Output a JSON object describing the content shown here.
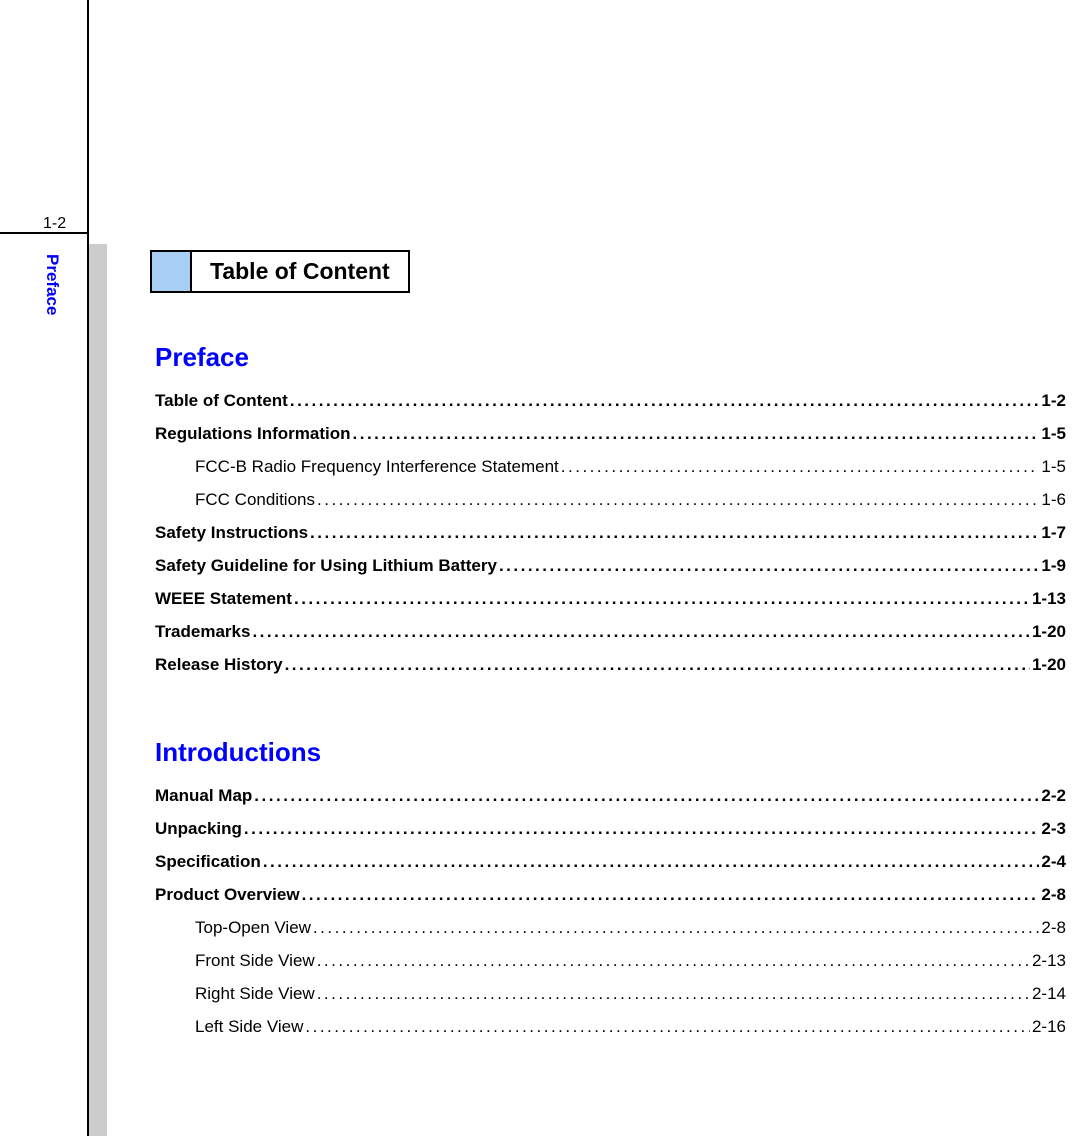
{
  "page_number": "1-2",
  "sidebar_tab": "Preface",
  "heading_box": "Table of Content",
  "colors": {
    "tab_text": "#0000ff",
    "section_title": "#0000ff",
    "box_fill": "#a9cef4",
    "gray_strip": "#cccccc",
    "text": "#000000",
    "background": "#ffffff"
  },
  "fonts": {
    "family": "Arial",
    "body_size_pt": 13,
    "section_title_size_pt": 20,
    "heading_box_size_pt": 17
  },
  "sections": [
    {
      "title": "Preface",
      "entries": [
        {
          "label": "Table of Content",
          "page": "1-2",
          "level": 0
        },
        {
          "label": "Regulations Information",
          "page": "1-5",
          "level": 0
        },
        {
          "label": "FCC-B Radio Frequency Interference Statement",
          "page": "1-5",
          "level": 1
        },
        {
          "label": "FCC Conditions",
          "page": "1-6",
          "level": 1
        },
        {
          "label": "Safety Instructions",
          "page": "1-7",
          "level": 0
        },
        {
          "label": "Safety Guideline for Using Lithium Battery",
          "page": "1-9",
          "level": 0
        },
        {
          "label": "WEEE Statement",
          "page": "1-13",
          "level": 0
        },
        {
          "label": "Trademarks",
          "page": "1-20",
          "level": 0
        },
        {
          "label": "Release History",
          "page": "1-20",
          "level": 0
        }
      ]
    },
    {
      "title": "Introductions",
      "entries": [
        {
          "label": "Manual Map",
          "page": "2-2",
          "level": 0
        },
        {
          "label": "Unpacking",
          "page": "2-3",
          "level": 0
        },
        {
          "label": "Specification",
          "page": "2-4",
          "level": 0
        },
        {
          "label": "Product Overview",
          "page": "2-8",
          "level": 0
        },
        {
          "label": "Top-Open View",
          "page": "2-8",
          "level": 1
        },
        {
          "label": "Front Side View",
          "page": "2-13",
          "level": 1
        },
        {
          "label": "Right Side View",
          "page": "2-14",
          "level": 1
        },
        {
          "label": "Left Side View",
          "page": "2-16",
          "level": 1
        }
      ]
    }
  ]
}
